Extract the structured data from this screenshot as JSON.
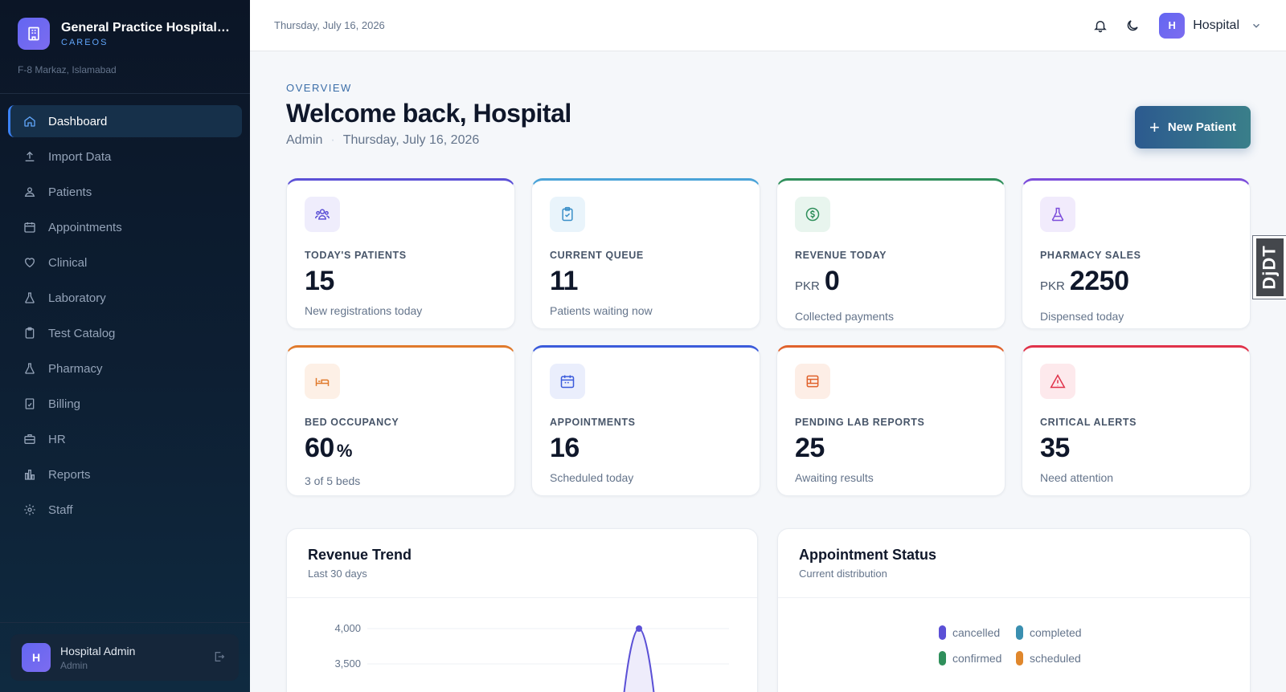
{
  "sidebar": {
    "brand_name": "General Practice Hospital I...",
    "brand_sub": "CAREOS",
    "address": "F-8 Markaz, Islamabad",
    "items": [
      {
        "label": "Dashboard",
        "icon": "home-icon",
        "active": true
      },
      {
        "label": "Import Data",
        "icon": "upload-icon"
      },
      {
        "label": "Patients",
        "icon": "users-icon"
      },
      {
        "label": "Appointments",
        "icon": "calendar-icon"
      },
      {
        "label": "Clinical",
        "icon": "heart-icon"
      },
      {
        "label": "Laboratory",
        "icon": "flask-icon"
      },
      {
        "label": "Test Catalog",
        "icon": "clipboard-icon"
      },
      {
        "label": "Pharmacy",
        "icon": "flask-icon"
      },
      {
        "label": "Billing",
        "icon": "receipt-icon"
      },
      {
        "label": "HR",
        "icon": "briefcase-icon"
      },
      {
        "label": "Reports",
        "icon": "bar-chart-icon"
      },
      {
        "label": "Staff",
        "icon": "gear-icon"
      }
    ],
    "user": {
      "initial": "H",
      "name": "Hospital Admin",
      "role": "Admin"
    }
  },
  "header": {
    "date": "Thursday, July 16, 2026",
    "user_initial": "H",
    "user_name": "Hospital"
  },
  "main": {
    "overline": "OVERVIEW",
    "welcome": "Welcome back, Hospital",
    "role": "Admin",
    "date": "Thursday, July 16, 2026",
    "new_patient_label": "New Patient"
  },
  "stats": [
    {
      "label": "TODAY'S PATIENTS",
      "value": "15",
      "sub": "New registrations today",
      "color": "#5b50d6",
      "bg": "#efedfc",
      "icon": "users-icon"
    },
    {
      "label": "CURRENT QUEUE",
      "value": "11",
      "sub": "Patients waiting now",
      "color": "#4aa3d8",
      "bg": "#e9f4fb",
      "icon": "clipboard-check-icon"
    },
    {
      "label": "REVENUE TODAY",
      "prefix": "PKR",
      "value": "0",
      "sub": "Collected payments",
      "color": "#2f8f5b",
      "bg": "#e8f5ee",
      "icon": "dollar-icon"
    },
    {
      "label": "PHARMACY SALES",
      "prefix": "PKR",
      "value": "2250",
      "sub": "Dispensed today",
      "color": "#7c4ddb",
      "bg": "#f1ebfc",
      "icon": "flask-icon"
    },
    {
      "label": "BED OCCUPANCY",
      "value": "60",
      "suffix": "%",
      "sub": "3 of 5 beds",
      "color": "#e07a2c",
      "bg": "#fdf0e6",
      "icon": "bed-icon"
    },
    {
      "label": "APPOINTMENTS",
      "value": "16",
      "sub": "Scheduled today",
      "color": "#3b5bdb",
      "bg": "#eaeefc",
      "icon": "calendar-icon"
    },
    {
      "label": "PENDING LAB REPORTS",
      "value": "25",
      "sub": "Awaiting results",
      "color": "#e0622c",
      "bg": "#fdeee6",
      "icon": "lab-report-icon"
    },
    {
      "label": "CRITICAL ALERTS",
      "value": "35",
      "sub": "Need attention",
      "color": "#e0324a",
      "bg": "#fde9ec",
      "icon": "alert-icon"
    }
  ],
  "revenue_panel": {
    "title": "Revenue Trend",
    "subtitle": "Last 30 days"
  },
  "status_panel": {
    "title": "Appointment Status",
    "subtitle": "Current distribution",
    "legend": [
      {
        "label": "cancelled",
        "color": "#5b50d6"
      },
      {
        "label": "completed",
        "color": "#3a8fb0"
      },
      {
        "label": "confirmed",
        "color": "#2f8f5b"
      },
      {
        "label": "scheduled",
        "color": "#e0872c"
      }
    ]
  },
  "chart_data": {
    "type": "area",
    "title": "Revenue Trend",
    "subtitle": "Last 30 days",
    "y_ticks": [
      "4,000",
      "3,500"
    ],
    "ylim": [
      3000,
      4000
    ],
    "peak_value": 4000,
    "grid": true
  },
  "debug_toolbar": {
    "label": "DjDT"
  }
}
